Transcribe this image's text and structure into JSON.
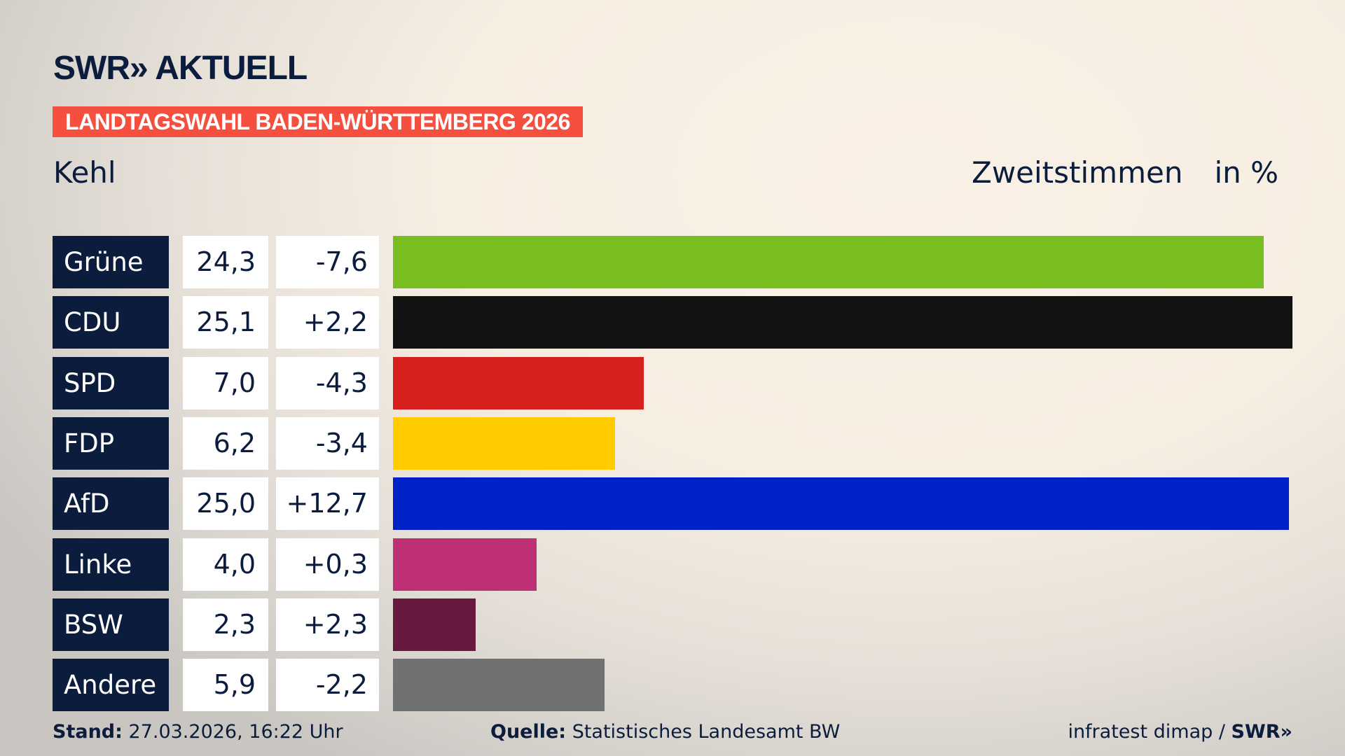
{
  "header": {
    "logo": "SWR» AKTUELL",
    "banner": "LANDTAGSWAHL BADEN-WÜRTTEMBERG 2026",
    "region": "Kehl",
    "vote_type": "Zweitstimmen",
    "unit": "in %"
  },
  "chart_data": {
    "type": "bar",
    "orientation": "horizontal",
    "categories": [
      "Grüne",
      "CDU",
      "SPD",
      "FDP",
      "AfD",
      "Linke",
      "BSW",
      "Andere"
    ],
    "values": [
      "24,3",
      "25,1",
      "7,0",
      "6,2",
      "25,0",
      "4,0",
      "2,3",
      "5,9"
    ],
    "numeric_values": [
      24.3,
      25.1,
      7.0,
      6.2,
      25.0,
      4.0,
      2.3,
      5.9
    ],
    "changes": [
      "-7,6",
      "+2,2",
      "-4,3",
      "-3,4",
      "+12,7",
      "+0,3",
      "+2,3",
      "-2,2"
    ],
    "colors": [
      "#78be20",
      "#121212",
      "#d71f1d",
      "#ffcc00",
      "#0021c8",
      "#be3075",
      "#671940",
      "#707173"
    ],
    "xlim": [
      0,
      25.1
    ]
  },
  "footer": {
    "stand_label": "Stand:",
    "stand": "27.03.2026, 16:22 Uhr",
    "source_label": "Quelle:",
    "source": "Statistisches Landesamt BW",
    "credit": "infratest dimap / ",
    "credit_logo": "SWR»"
  }
}
